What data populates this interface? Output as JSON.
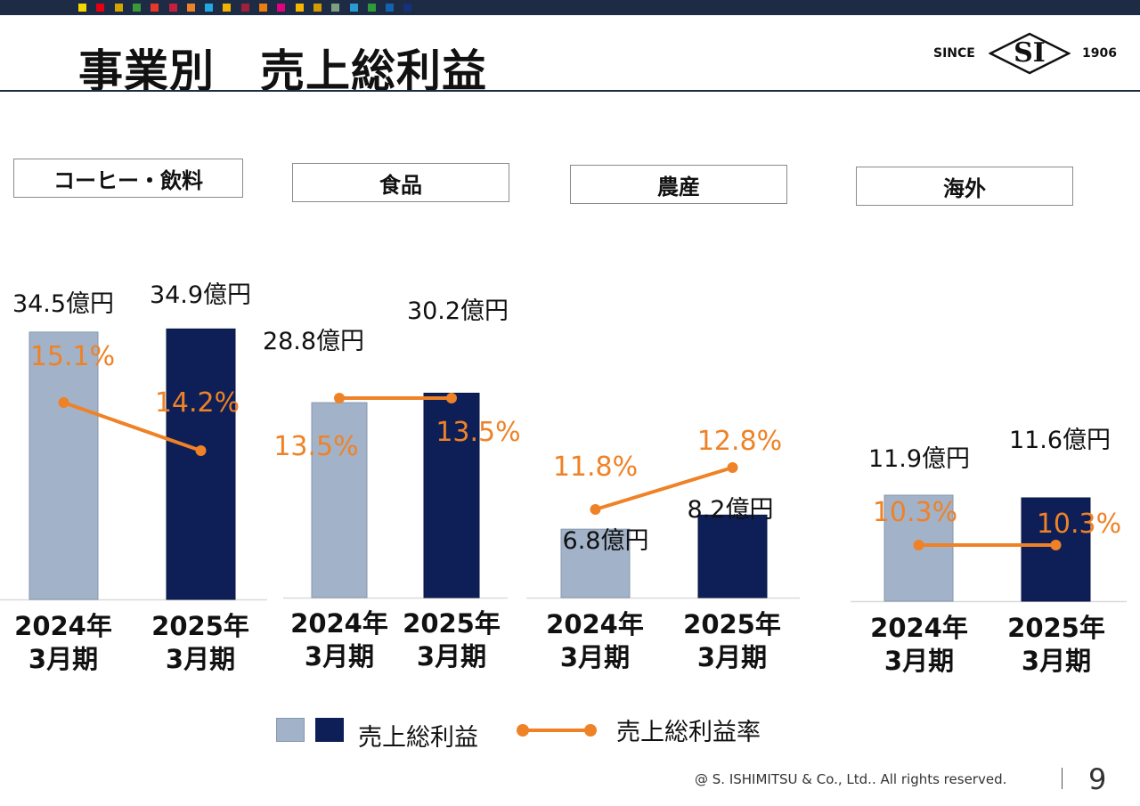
{
  "header": {
    "title": "事業別　売上総利益",
    "logo_since": "SINCE",
    "logo_mark": "SI",
    "logo_year": "1906",
    "color_squares": [
      "#f5d800",
      "#e60012",
      "#d4a400",
      "#3a9a3a",
      "#e83828",
      "#c7203c",
      "#ef8226",
      "#22a8e0",
      "#f3b100",
      "#a0203c",
      "#ee7d10",
      "#e4007f",
      "#f8b500",
      "#d49a00",
      "#7fa07f",
      "#2a9ad4",
      "#2e9a3a",
      "#0f63b0",
      "#17307a"
    ],
    "bar_color": "#1d2b45"
  },
  "segments": [
    {
      "label": "コーヒー・飲料"
    },
    {
      "label": "食品"
    },
    {
      "label": "農産"
    },
    {
      "label": "海外"
    }
  ],
  "chart_data": [
    {
      "type": "bar",
      "segment": "コーヒー・飲料",
      "categories": [
        [
          "2024年",
          "3月期"
        ],
        [
          "2025年",
          "3月期"
        ]
      ],
      "values": [
        34.5,
        34.9
      ],
      "value_labels": [
        "34.5億円",
        "34.9億円"
      ],
      "rate": [
        15.1,
        14.2
      ],
      "rate_labels": [
        "15.1%",
        "14.2%"
      ]
    },
    {
      "type": "bar",
      "segment": "食品",
      "categories": [
        [
          "2024年",
          "3月期"
        ],
        [
          "2025年",
          "3月期"
        ]
      ],
      "values": [
        28.8,
        30.2
      ],
      "value_labels": [
        "28.8億円",
        "30.2億円"
      ],
      "rate": [
        13.5,
        13.5
      ],
      "rate_labels": [
        "13.5%",
        "13.5%"
      ]
    },
    {
      "type": "bar",
      "segment": "農産",
      "categories": [
        [
          "2024年",
          "3月期"
        ],
        [
          "2025年",
          "3月期"
        ]
      ],
      "values": [
        6.8,
        8.2
      ],
      "value_labels": [
        "6.8億円",
        "8.2億円"
      ],
      "rate": [
        11.8,
        12.8
      ],
      "rate_labels": [
        "11.8%",
        "12.8%"
      ]
    },
    {
      "type": "bar",
      "segment": "海外",
      "categories": [
        [
          "2024年",
          "3月期"
        ],
        [
          "2025年",
          "3月期"
        ]
      ],
      "values": [
        11.9,
        11.6
      ],
      "value_labels": [
        "11.9億円",
        "11.6億円"
      ],
      "rate": [
        10.3,
        10.3
      ],
      "rate_labels": [
        "10.3%",
        "10.3%"
      ]
    }
  ],
  "colors": {
    "bar_prev": "#a2b3c9",
    "bar_curr": "#0e1f57",
    "rate_line": "#ef8226",
    "axis": "#d9d9d9"
  },
  "legend": {
    "bar_label": "売上総利益",
    "line_label": "売上総利益率"
  },
  "footer": {
    "copyright": "@ S. ISHIMITSU & Co., Ltd.. All rights reserved.",
    "page": "9"
  }
}
